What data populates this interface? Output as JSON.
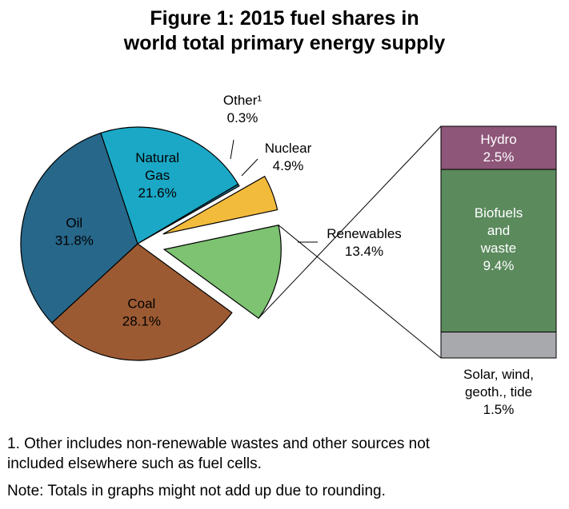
{
  "title_line1": "Figure 1: 2015 fuel shares in",
  "title_line2": "world total primary energy supply",
  "chart_data": {
    "type": "pie",
    "unit": "%",
    "slices": [
      {
        "name": "Renewables",
        "value": 13.4,
        "value_label": "13.4%",
        "color": "#7dc372",
        "exploded": true
      },
      {
        "name": "Coal",
        "value": 28.1,
        "value_label": "28.1%",
        "color": "#9c5a33"
      },
      {
        "name": "Oil",
        "value": 31.8,
        "value_label": "31.8%",
        "color": "#27678a"
      },
      {
        "name": "Natural Gas",
        "value": 21.6,
        "value_label": "21.6%",
        "color": "#1ba8c6"
      },
      {
        "name": "Other¹",
        "value": 0.3,
        "value_label": "0.3%",
        "color": "#1b6f8e"
      },
      {
        "name": "Nuclear",
        "value": 4.9,
        "value_label": "4.9%",
        "color": "#f3bb3c",
        "exploded": true
      }
    ],
    "breakdown": {
      "of": "Renewables",
      "segments": [
        {
          "name": "Hydro",
          "value": 2.5,
          "value_label": "2.5%",
          "color": "#8e5679"
        },
        {
          "name": "Biofuels and waste",
          "value": 9.4,
          "value_label": "9.4%",
          "color": "#5b8a5d"
        },
        {
          "name": "Solar, wind, geoth., tide",
          "value": 1.5,
          "value_label": "1.5%",
          "color": "#a7a9ac"
        }
      ]
    }
  },
  "footnote_line1": "1. Other includes non-renewable wastes and other sources not",
  "footnote_line2": "included elsewhere such as fuel cells.",
  "note": "Note: Totals in graphs might not add up due to rounding."
}
